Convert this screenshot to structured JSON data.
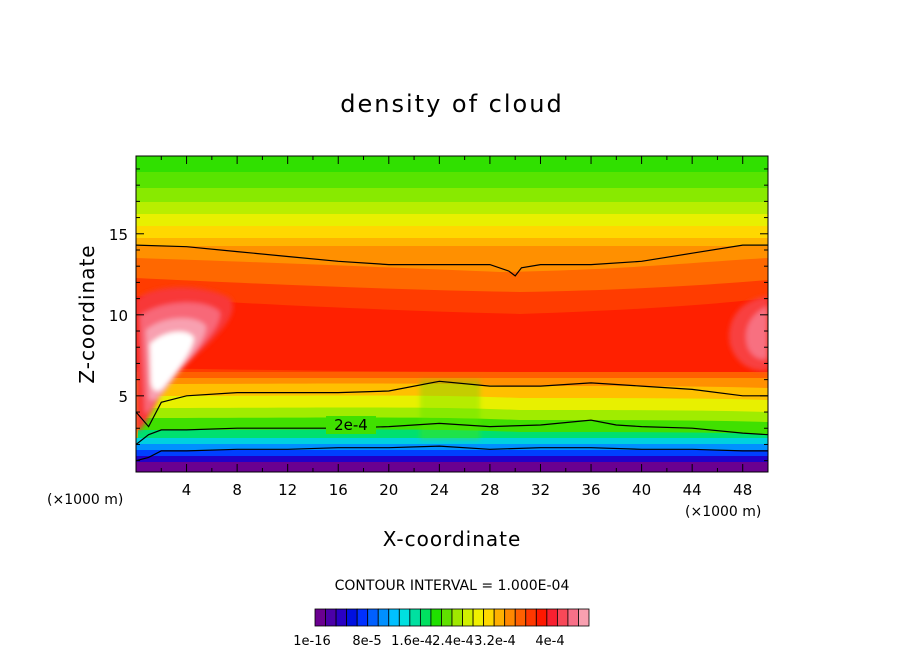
{
  "chart_data": {
    "type": "heatmap",
    "title": "density of cloud",
    "xlabel": "X-coordinate",
    "ylabel": "Z-coordinate",
    "x_unit": "(×1000 m)",
    "y_unit": "(×1000 m)",
    "xlim": [
      0,
      50
    ],
    "ylim": [
      0.3,
      19.8
    ],
    "x_ticks": [
      "4",
      "8",
      "12",
      "16",
      "20",
      "24",
      "28",
      "32",
      "36",
      "40",
      "44",
      "48"
    ],
    "y_ticks": [
      "5",
      "10",
      "15"
    ],
    "contour_interval_text": "CONTOUR INTERVAL = 1.000E-04",
    "contour_label": "2e-4",
    "contour_lines": [
      {
        "level": 0.0001,
        "x": [
          0,
          1,
          2,
          4,
          8,
          12,
          16,
          20,
          24,
          28,
          32,
          36,
          40,
          44,
          48,
          50
        ],
        "z": [
          1.0,
          1.2,
          1.6,
          1.6,
          1.7,
          1.7,
          1.8,
          1.8,
          1.9,
          1.7,
          1.8,
          1.8,
          1.7,
          1.7,
          1.6,
          1.6
        ]
      },
      {
        "level": 0.0002,
        "x": [
          0,
          1,
          2,
          4,
          8,
          12,
          16,
          20,
          24,
          28,
          32,
          36,
          38,
          40,
          44,
          48,
          50
        ],
        "z": [
          2.0,
          2.6,
          2.9,
          2.9,
          3.0,
          3.0,
          3.0,
          3.1,
          3.3,
          3.1,
          3.2,
          3.5,
          3.2,
          3.1,
          3.0,
          2.7,
          2.6
        ]
      },
      {
        "level": 0.0003,
        "x": [
          0,
          1,
          2,
          4,
          8,
          12,
          16,
          20,
          24,
          28,
          32,
          36,
          40,
          44,
          48,
          50
        ],
        "z": [
          4.0,
          3.1,
          4.6,
          5.0,
          5.2,
          5.2,
          5.2,
          5.3,
          5.9,
          5.6,
          5.6,
          5.8,
          5.6,
          5.4,
          5.0,
          5.0
        ]
      },
      {
        "level": 0.0003,
        "x": [
          0,
          4,
          8,
          12,
          16,
          20,
          24,
          28,
          29.5,
          30,
          30.5,
          32,
          36,
          40,
          44,
          48,
          50
        ],
        "z": [
          14.3,
          14.2,
          13.9,
          13.6,
          13.3,
          13.1,
          13.1,
          13.1,
          12.7,
          12.4,
          12.9,
          13.1,
          13.1,
          13.3,
          13.8,
          14.3,
          14.3
        ]
      }
    ],
    "colorbar": {
      "colors": [
        "#6a0090",
        "#4b00a8",
        "#2a00c4",
        "#0010e0",
        "#0030ff",
        "#0060ff",
        "#0090ff",
        "#00c0ff",
        "#00e0e0",
        "#00e0a0",
        "#00e060",
        "#20e000",
        "#60e000",
        "#a0e800",
        "#d0f000",
        "#f0f000",
        "#ffd800",
        "#ffb000",
        "#ff8800",
        "#ff6000",
        "#ff3800",
        "#ff1800",
        "#f82030",
        "#f84858",
        "#f87088",
        "#f8a0b0"
      ],
      "tick_labels": [
        "1e-16",
        "8e-5",
        "1.6e-4",
        "2.4e-4",
        "3.2e-4",
        "4e-4"
      ]
    }
  }
}
